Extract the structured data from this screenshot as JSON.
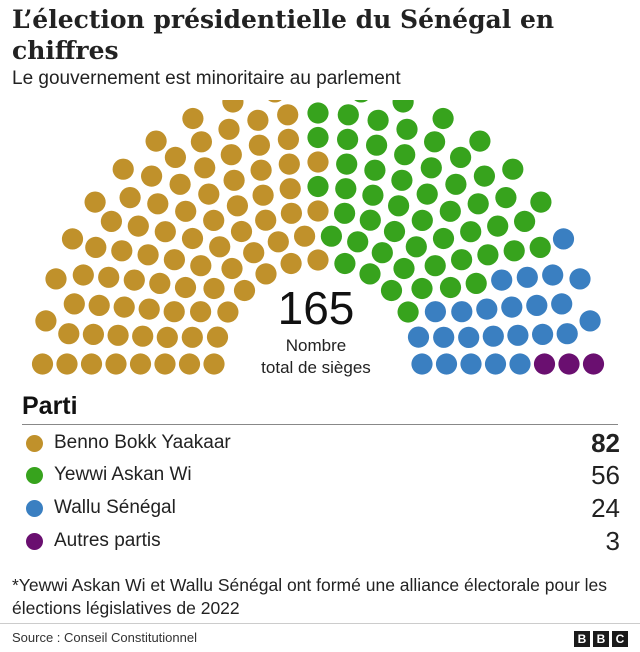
{
  "header": {
    "title": "L’élection présidentielle du Sénégal en chiffres",
    "subtitle": "Le gouvernement est minoritaire au parlement"
  },
  "center": {
    "total": "165",
    "label_line1": "Nombre",
    "label_line2": "total de sièges"
  },
  "legend": {
    "heading": "Parti",
    "items": [
      {
        "name": "Benno Bokk Yaakaar",
        "value": "82",
        "color": "#c0912b"
      },
      {
        "name": "Yewwi Askan Wi",
        "value": "56",
        "color": "#37a31d"
      },
      {
        "name": "Wallu Sénégal",
        "value": "24",
        "color": "#3a7fc1"
      },
      {
        "name": "Autres partis",
        "value": "3",
        "color": "#6a0f70"
      }
    ]
  },
  "footnote": "*Yewwi Askan Wi et Wallu Sénégal ont formé une alliance électorale pour les élections législatives de 2022",
  "source": "Source : Conseil Constitutionnel",
  "logo": [
    "B",
    "B",
    "C"
  ],
  "chart_data": {
    "type": "parliament",
    "title": "L’élection présidentielle du Sénégal en chiffres",
    "subtitle": "Le gouvernement est minoritaire au parlement",
    "total_seats": 165,
    "series": [
      {
        "name": "Benno Bokk Yaakaar",
        "value": 82,
        "color": "#c0912b"
      },
      {
        "name": "Yewwi Askan Wi",
        "value": 56,
        "color": "#37a31d"
      },
      {
        "name": "Wallu Sénégal",
        "value": 24,
        "color": "#3a7fc1"
      },
      {
        "name": "Autres partis",
        "value": 3,
        "color": "#6a0f70"
      }
    ]
  }
}
